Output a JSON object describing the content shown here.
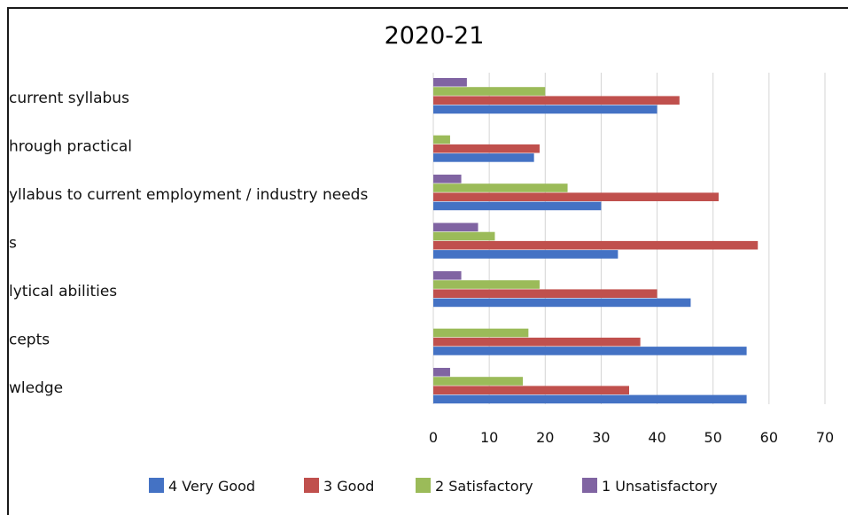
{
  "chart_data": {
    "type": "bar",
    "orientation": "horizontal",
    "title": "2020-21",
    "categories": [
      "current syllabus",
      "hrough practical",
      "yllabus to current employment / industry needs",
      "s",
      "lytical abilities",
      "cepts",
      "wledge"
    ],
    "series": [
      {
        "name": "4 Very Good",
        "color": "#4472c4",
        "values": [
          40,
          18,
          30,
          33,
          46,
          56,
          56
        ]
      },
      {
        "name": "3 Good",
        "color": "#c0504d",
        "values": [
          44,
          19,
          51,
          58,
          40,
          37,
          35
        ]
      },
      {
        "name": "2 Satisfactory",
        "color": "#9bbb59",
        "values": [
          20,
          3,
          24,
          11,
          19,
          17,
          16
        ]
      },
      {
        "name": "1 Unsatisfactory",
        "color": "#8064a2",
        "values": [
          6,
          0,
          5,
          8,
          5,
          0,
          3
        ]
      }
    ],
    "xlim": [
      0,
      70
    ],
    "xticks": [
      "0",
      "10",
      "20",
      "30",
      "40",
      "50",
      "60",
      "70"
    ],
    "grid": true,
    "legend_position": "bottom"
  }
}
